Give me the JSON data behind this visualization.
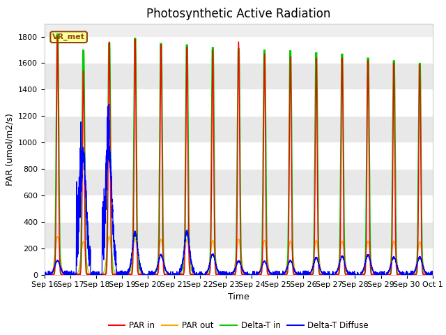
{
  "title": "Photosynthetic Active Radiation",
  "ylabel": "PAR (umol/m2/s)",
  "xlabel": "Time",
  "ylim": [
    0,
    1900
  ],
  "yticks": [
    0,
    200,
    400,
    600,
    800,
    1000,
    1200,
    1400,
    1600,
    1800
  ],
  "xtick_labels": [
    "Sep 16",
    "Sep 17",
    "Sep 18",
    "Sep 19",
    "Sep 20",
    "Sep 21",
    "Sep 22",
    "Sep 23",
    "Sep 24",
    "Sep 25",
    "Sep 26",
    "Sep 27",
    "Sep 28",
    "Sep 29",
    "Sep 30",
    "Oct 1"
  ],
  "legend_labels": [
    "PAR in",
    "PAR out",
    "Delta-T in",
    "Delta-T Diffuse"
  ],
  "legend_colors": [
    "#FF0000",
    "#FFA500",
    "#00CC00",
    "#0000FF"
  ],
  "box_label": "VR_met",
  "box_color": "#FFFF99",
  "box_border": "#8B4513",
  "background_color": "#FFFFFF",
  "plot_bg_color": "#EEEEEE",
  "grid_color": "#FFFFFF",
  "title_fontsize": 12,
  "label_fontsize": 9,
  "tick_fontsize": 8,
  "par_in_peaks": [
    1800,
    1540,
    1760,
    1780,
    1740,
    1720,
    1700,
    1760,
    1670,
    1650,
    1640,
    1640,
    1620,
    1600,
    1590
  ],
  "par_out_peaks": [
    290,
    250,
    290,
    275,
    270,
    265,
    260,
    270,
    260,
    255,
    260,
    255,
    255,
    255,
    250
  ],
  "delta_t_in_peaks": [
    1820,
    1700,
    1755,
    1790,
    1750,
    1740,
    1720,
    1710,
    1700,
    1695,
    1680,
    1670,
    1640,
    1620,
    1600
  ],
  "delta_t_diffuse_peaks": [
    100,
    810,
    850,
    300,
    140,
    300,
    145,
    95,
    95,
    100,
    120,
    130,
    140,
    125,
    125
  ],
  "n_days": 15,
  "pts_per_day": 288,
  "day_start": 0.22,
  "day_end": 0.78
}
